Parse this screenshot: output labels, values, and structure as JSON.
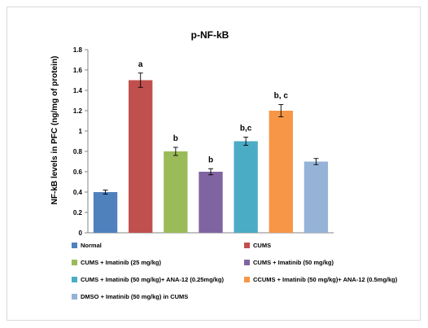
{
  "chart_data": {
    "type": "bar",
    "title": "p-NF-kB",
    "xlabel": "",
    "ylabel": "NF-kB levels in PFC (ng/mg of protein)",
    "ylim": [
      0,
      1.8
    ],
    "yticks": [
      "0",
      "0.2",
      "0.4",
      "0.6",
      "0.8",
      "1",
      "1.2",
      "1.4",
      "1.6",
      "1.8"
    ],
    "grid": false,
    "legend_position": "bottom",
    "categories": [
      "Normal",
      "CUMS",
      "CUMS + Imatinib (25 mg/kg)",
      "CUMS + Imatinib (50 mg/kg)",
      "CUMS + Imatinib (50 mg/kg)+ ANA-12 (0.25mg/kg)",
      "CCUMS + Imatinib (50 mg/kg)+ ANA-12 (0.5mg/kg)",
      "DMSO + Imatinib (50  mg/kg) in CUMS"
    ],
    "values": [
      0.4,
      1.5,
      0.8,
      0.6,
      0.9,
      1.2,
      0.7
    ],
    "errors": [
      0.02,
      0.07,
      0.04,
      0.03,
      0.04,
      0.06,
      0.03
    ],
    "annotations": [
      "",
      "a",
      "b",
      "b",
      "b,c",
      "b, c",
      ""
    ],
    "colors": [
      "#4F81BD",
      "#C0504D",
      "#9BBB59",
      "#8064A2",
      "#4BACC6",
      "#F79646",
      "#95B3D7"
    ]
  }
}
